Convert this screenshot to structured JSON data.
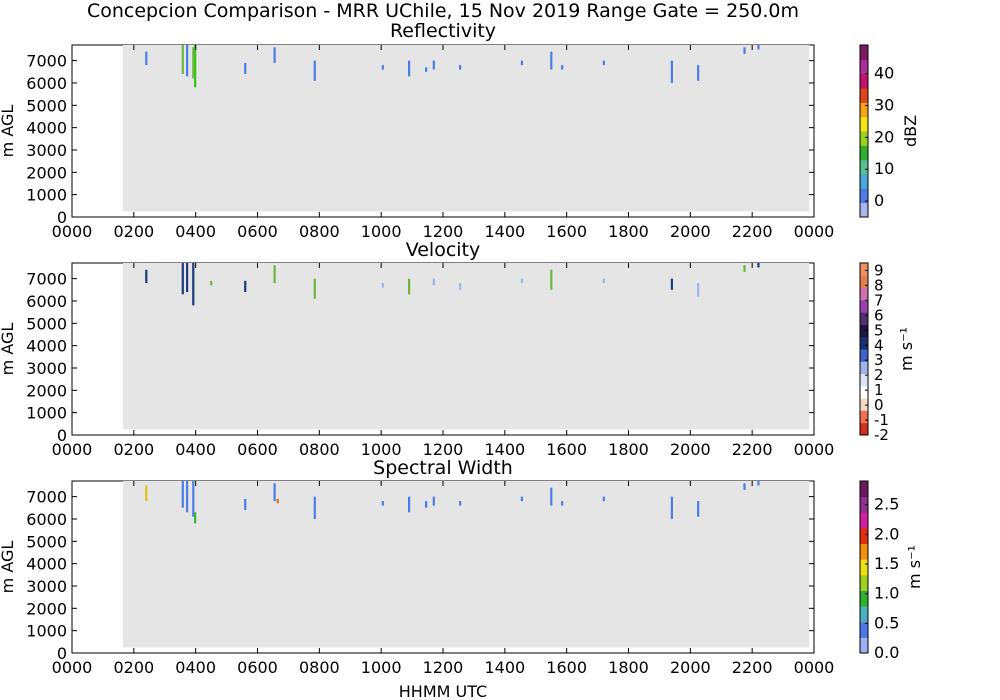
{
  "figure": {
    "suptitle": "Concepcion Comparison - MRR UChile, 15 Nov 2019 Range Gate = 250.0m",
    "xlabel": "HHMM UTC"
  },
  "chart_data": [
    {
      "type": "heatmap",
      "title": "Reflectivity",
      "ylabel": "m AGL",
      "xlabel": "",
      "xlim": [
        0,
        2400
      ],
      "ylim": [
        0,
        7700
      ],
      "x_ticks": [
        "0000",
        "0200",
        "0400",
        "0600",
        "0800",
        "1000",
        "1200",
        "1400",
        "1600",
        "1800",
        "2000",
        "2200",
        "0000"
      ],
      "y_ticks": [
        "0",
        "1000",
        "2000",
        "3000",
        "4000",
        "5000",
        "6000",
        "7000"
      ],
      "data_coverage_x": [
        165,
        2385
      ],
      "data_coverage_y": [
        250,
        7700
      ],
      "colorbar": {
        "label": "dBZ",
        "range": [
          -5,
          49
        ],
        "ticks": [
          "0",
          "10",
          "20",
          "30",
          "40"
        ]
      },
      "echoes": [
        {
          "x": 240,
          "y0": 6800,
          "y1": 7400,
          "level": "low"
        },
        {
          "x": 358,
          "y0": 6400,
          "y1": 7700,
          "level": "mid"
        },
        {
          "x": 372,
          "y0": 6300,
          "y1": 7700,
          "level": "low"
        },
        {
          "x": 392,
          "y0": 6200,
          "y1": 7600,
          "level": "mid"
        },
        {
          "x": 398,
          "y0": 5800,
          "y1": 7700,
          "level": "high"
        },
        {
          "x": 560,
          "y0": 6400,
          "y1": 6900,
          "level": "low"
        },
        {
          "x": 655,
          "y0": 6900,
          "y1": 7600,
          "level": "low"
        },
        {
          "x": 785,
          "y0": 6100,
          "y1": 7000,
          "level": "low"
        },
        {
          "x": 1005,
          "y0": 6600,
          "y1": 6800,
          "level": "low"
        },
        {
          "x": 1090,
          "y0": 6300,
          "y1": 7000,
          "level": "low"
        },
        {
          "x": 1145,
          "y0": 6500,
          "y1": 6700,
          "level": "low"
        },
        {
          "x": 1170,
          "y0": 6600,
          "y1": 7000,
          "level": "low"
        },
        {
          "x": 1255,
          "y0": 6600,
          "y1": 6800,
          "level": "low"
        },
        {
          "x": 1455,
          "y0": 6800,
          "y1": 7000,
          "level": "low"
        },
        {
          "x": 1550,
          "y0": 6600,
          "y1": 7400,
          "level": "low"
        },
        {
          "x": 1585,
          "y0": 6600,
          "y1": 6800,
          "level": "low"
        },
        {
          "x": 1720,
          "y0": 6800,
          "y1": 7000,
          "level": "low"
        },
        {
          "x": 1940,
          "y0": 6000,
          "y1": 7000,
          "level": "low"
        },
        {
          "x": 2025,
          "y0": 6100,
          "y1": 6800,
          "level": "low"
        },
        {
          "x": 2175,
          "y0": 7300,
          "y1": 7600,
          "level": "low"
        },
        {
          "x": 2220,
          "y0": 7500,
          "y1": 7700,
          "level": "low"
        }
      ]
    },
    {
      "type": "heatmap",
      "title": "Velocity",
      "ylabel": "m AGL",
      "xlabel": "",
      "xlim": [
        0,
        2400
      ],
      "ylim": [
        0,
        7700
      ],
      "x_ticks": [
        "0000",
        "0200",
        "0400",
        "0600",
        "0800",
        "1000",
        "1200",
        "1400",
        "1600",
        "1800",
        "2000",
        "2200",
        "0000"
      ],
      "y_ticks": [
        "0",
        "1000",
        "2000",
        "3000",
        "4000",
        "5000",
        "6000",
        "7000"
      ],
      "data_coverage_x": [
        165,
        2385
      ],
      "data_coverage_y": [
        250,
        7700
      ],
      "colorbar": {
        "label": "m s⁻¹",
        "range": [
          -2,
          9.5
        ],
        "ticks": [
          "-2",
          "-1",
          "0",
          "1",
          "2",
          "3",
          "4",
          "5",
          "6",
          "7",
          "8",
          "9"
        ]
      },
      "echoes": [
        {
          "x": 240,
          "y0": 6800,
          "y1": 7400,
          "level": "dark"
        },
        {
          "x": 358,
          "y0": 6300,
          "y1": 7700,
          "level": "dark"
        },
        {
          "x": 372,
          "y0": 6400,
          "y1": 7700,
          "level": "dark"
        },
        {
          "x": 392,
          "y0": 5800,
          "y1": 7700,
          "level": "dark"
        },
        {
          "x": 450,
          "y0": 6700,
          "y1": 6900,
          "level": "mid"
        },
        {
          "x": 560,
          "y0": 6400,
          "y1": 6900,
          "level": "dark"
        },
        {
          "x": 655,
          "y0": 6800,
          "y1": 7600,
          "level": "mid"
        },
        {
          "x": 785,
          "y0": 6100,
          "y1": 7000,
          "level": "mid"
        },
        {
          "x": 1005,
          "y0": 6600,
          "y1": 6800,
          "level": "light"
        },
        {
          "x": 1090,
          "y0": 6300,
          "y1": 7000,
          "level": "mid"
        },
        {
          "x": 1170,
          "y0": 6700,
          "y1": 7000,
          "level": "light"
        },
        {
          "x": 1255,
          "y0": 6500,
          "y1": 6800,
          "level": "light"
        },
        {
          "x": 1455,
          "y0": 6800,
          "y1": 7000,
          "level": "light"
        },
        {
          "x": 1550,
          "y0": 6500,
          "y1": 7400,
          "level": "mid"
        },
        {
          "x": 1720,
          "y0": 6800,
          "y1": 7000,
          "level": "light"
        },
        {
          "x": 1940,
          "y0": 6500,
          "y1": 7000,
          "level": "dark"
        },
        {
          "x": 2025,
          "y0": 6200,
          "y1": 6800,
          "level": "light"
        },
        {
          "x": 2175,
          "y0": 7300,
          "y1": 7600,
          "level": "mid"
        },
        {
          "x": 2220,
          "y0": 7500,
          "y1": 7700,
          "level": "dark"
        }
      ]
    },
    {
      "type": "heatmap",
      "title": "Spectral Width",
      "ylabel": "m AGL",
      "xlabel": "HHMM UTC",
      "xlim": [
        0,
        2400
      ],
      "ylim": [
        0,
        7700
      ],
      "x_ticks": [
        "0000",
        "0200",
        "0400",
        "0600",
        "0800",
        "1000",
        "1200",
        "1400",
        "1600",
        "1800",
        "2000",
        "2200",
        "0000"
      ],
      "y_ticks": [
        "0",
        "1000",
        "2000",
        "3000",
        "4000",
        "5000",
        "6000",
        "7000"
      ],
      "data_coverage_x": [
        165,
        2385
      ],
      "data_coverage_y": [
        250,
        7700
      ],
      "colorbar": {
        "label": "m s⁻¹",
        "range": [
          0.0,
          2.9
        ],
        "ticks": [
          "0.0",
          "0.5",
          "1.0",
          "1.5",
          "2.0",
          "2.5"
        ]
      },
      "echoes": [
        {
          "x": 240,
          "y0": 6800,
          "y1": 7500,
          "level": "warm"
        },
        {
          "x": 358,
          "y0": 6500,
          "y1": 7700,
          "level": "low"
        },
        {
          "x": 372,
          "y0": 6300,
          "y1": 7700,
          "level": "low"
        },
        {
          "x": 392,
          "y0": 6100,
          "y1": 7700,
          "level": "low"
        },
        {
          "x": 398,
          "y0": 5800,
          "y1": 6300,
          "level": "green"
        },
        {
          "x": 560,
          "y0": 6400,
          "y1": 6900,
          "level": "low"
        },
        {
          "x": 655,
          "y0": 6800,
          "y1": 7600,
          "level": "low"
        },
        {
          "x": 665,
          "y0": 6700,
          "y1": 6900,
          "level": "orange"
        },
        {
          "x": 785,
          "y0": 6000,
          "y1": 7000,
          "level": "low"
        },
        {
          "x": 1005,
          "y0": 6600,
          "y1": 6800,
          "level": "low"
        },
        {
          "x": 1090,
          "y0": 6300,
          "y1": 7000,
          "level": "low"
        },
        {
          "x": 1145,
          "y0": 6500,
          "y1": 6800,
          "level": "low"
        },
        {
          "x": 1170,
          "y0": 6600,
          "y1": 7000,
          "level": "low"
        },
        {
          "x": 1255,
          "y0": 6600,
          "y1": 6800,
          "level": "low"
        },
        {
          "x": 1455,
          "y0": 6800,
          "y1": 7000,
          "level": "low"
        },
        {
          "x": 1550,
          "y0": 6600,
          "y1": 7400,
          "level": "low"
        },
        {
          "x": 1585,
          "y0": 6600,
          "y1": 6800,
          "level": "low"
        },
        {
          "x": 1720,
          "y0": 6800,
          "y1": 7000,
          "level": "low"
        },
        {
          "x": 1940,
          "y0": 6000,
          "y1": 7000,
          "level": "low"
        },
        {
          "x": 2025,
          "y0": 6100,
          "y1": 6800,
          "level": "low"
        },
        {
          "x": 2175,
          "y0": 7300,
          "y1": 7600,
          "level": "low"
        },
        {
          "x": 2220,
          "y0": 7500,
          "y1": 7700,
          "level": "low"
        }
      ]
    }
  ],
  "colors": {
    "no_data": "#e5e5e5",
    "echo": {
      "low": "#4a7de8",
      "mid": "#6fb640",
      "high": "#39c21a",
      "dark": "#1f3a7a",
      "light": "#9db6ea",
      "warm": "#e0c020",
      "green": "#3ab53a",
      "orange": "#e86a10"
    },
    "cmap_refl": [
      "#a8b4f0",
      "#4f7de8",
      "#4aa8d8",
      "#56c090",
      "#2fae2f",
      "#9bd21b",
      "#f2e31b",
      "#f7a41a",
      "#e2441a",
      "#c4126e",
      "#a8309a",
      "#7a1a60"
    ],
    "cmap_vel": [
      "#d0301c",
      "#f07050",
      "#f8d8c8",
      "#ffffff",
      "#dfe3f2",
      "#9fb3e8",
      "#3f62c8",
      "#1a2f70",
      "#1c1640",
      "#503070",
      "#9840b0",
      "#d070b0",
      "#e08050",
      "#f09060"
    ],
    "cmap_sw": [
      "#a0b0f0",
      "#5078e8",
      "#4ab0c0",
      "#30b030",
      "#a0d020",
      "#f0e010",
      "#f09010",
      "#e03010",
      "#d020a0",
      "#903090",
      "#6a1a5a"
    ]
  }
}
